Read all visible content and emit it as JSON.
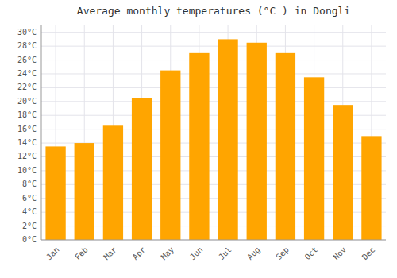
{
  "chart_data": {
    "type": "bar",
    "title": "Average monthly temperatures (°C ) in Dongli",
    "categories": [
      "Jan",
      "Feb",
      "Mar",
      "Apr",
      "May",
      "Jun",
      "Jul",
      "Aug",
      "Sep",
      "Oct",
      "Nov",
      "Dec"
    ],
    "values": [
      13.5,
      14.0,
      16.5,
      20.5,
      24.5,
      27.0,
      29.0,
      28.5,
      27.0,
      23.5,
      19.5,
      15.0
    ],
    "color": "#FFA500",
    "ylim": [
      0,
      31
    ],
    "yticks": [
      {
        "value": 0,
        "label": "0°C"
      },
      {
        "value": 2,
        "label": "2°C"
      },
      {
        "value": 4,
        "label": "4°C"
      },
      {
        "value": 6,
        "label": "6°C"
      },
      {
        "value": 8,
        "label": "8°C"
      },
      {
        "value": 10,
        "label": "10°C"
      },
      {
        "value": 12,
        "label": "12°C"
      },
      {
        "value": 14,
        "label": "14°C"
      },
      {
        "value": 16,
        "label": "16°C"
      },
      {
        "value": 18,
        "label": "18°C"
      },
      {
        "value": 20,
        "label": "20°C"
      },
      {
        "value": 22,
        "label": "22°C"
      },
      {
        "value": 24,
        "label": "24°C"
      },
      {
        "value": 26,
        "label": "26°C"
      },
      {
        "value": 28,
        "label": "28°C"
      },
      {
        "value": 30,
        "label": "30°C"
      }
    ],
    "grid": true
  }
}
